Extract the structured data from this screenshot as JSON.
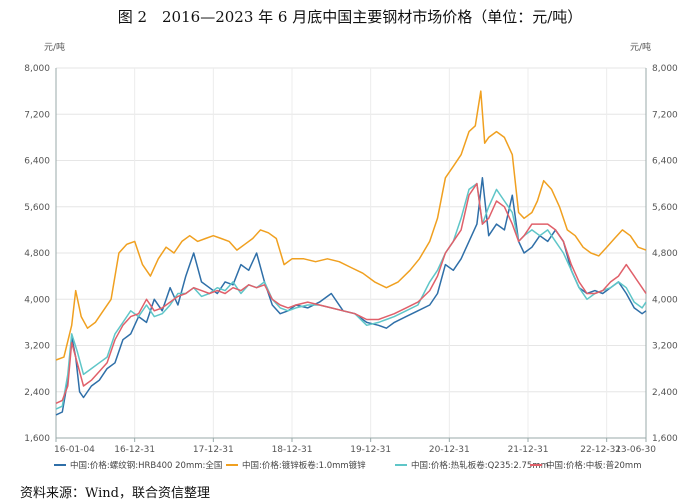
{
  "figure_title": "图 2　2016—2023 年 6 月底中国主要钢材市场价格（单位：元/吨）",
  "source_note": "资料来源：Wind，联合资信整理",
  "colors": {
    "s1": "#2f6fa8",
    "s2": "#f0a020",
    "s3": "#5fc6c8",
    "s4": "#e0606a"
  },
  "chart_data": {
    "type": "line",
    "title": "图 2　2016—2023 年 6 月底中国主要钢材市场价格（单位：元/吨）",
    "y_unit_left": "元/吨",
    "y_unit_right": "元/吨",
    "ylim": [
      1600,
      8000
    ],
    "y_ticks": [
      "1,600",
      "2,400",
      "3,200",
      "4,000",
      "4,800",
      "5,600",
      "6,400",
      "7,200",
      "8,000"
    ],
    "y_tick_values": [
      1600,
      2400,
      3200,
      4000,
      4800,
      5600,
      6400,
      7200,
      8000
    ],
    "x_ticks": [
      "16-01-04",
      "16-12-31",
      "17-12-31",
      "18-12-31",
      "19-12-31",
      "20-12-31",
      "21-12-31",
      "22-12-31",
      "23-06-30"
    ],
    "x_tick_values": [
      2016.0,
      2017.0,
      2018.0,
      2019.0,
      2020.0,
      2021.0,
      2022.0,
      2023.0,
      2023.5
    ],
    "xlim": [
      2016.0,
      2023.5
    ],
    "grid": true,
    "legend": "bottom",
    "series": [
      {
        "name": "中国:价格:螺纹钢:HRB400 20mm:全国",
        "x": [
          2016.0,
          2016.08,
          2016.15,
          2016.2,
          2016.25,
          2016.3,
          2016.35,
          2016.45,
          2016.55,
          2016.65,
          2016.75,
          2016.85,
          2016.95,
          2017.05,
          2017.15,
          2017.25,
          2017.35,
          2017.45,
          2017.55,
          2017.65,
          2017.75,
          2017.85,
          2017.95,
          2018.05,
          2018.15,
          2018.25,
          2018.35,
          2018.45,
          2018.55,
          2018.65,
          2018.75,
          2018.85,
          2018.95,
          2019.05,
          2019.2,
          2019.35,
          2019.5,
          2019.65,
          2019.8,
          2019.95,
          2020.1,
          2020.2,
          2020.3,
          2020.45,
          2020.6,
          2020.75,
          2020.85,
          2020.95,
          2021.05,
          2021.15,
          2021.25,
          2021.35,
          2021.42,
          2021.5,
          2021.6,
          2021.7,
          2021.8,
          2021.88,
          2021.95,
          2022.05,
          2022.15,
          2022.25,
          2022.35,
          2022.45,
          2022.55,
          2022.65,
          2022.75,
          2022.85,
          2022.95,
          2023.05,
          2023.15,
          2023.25,
          2023.35,
          2023.45,
          2023.5
        ],
        "y": [
          2000,
          2050,
          2600,
          3350,
          3000,
          2400,
          2300,
          2500,
          2600,
          2800,
          2900,
          3300,
          3400,
          3700,
          3600,
          4000,
          3800,
          4200,
          3900,
          4400,
          4800,
          4300,
          4200,
          4100,
          4300,
          4250,
          4600,
          4500,
          4800,
          4300,
          3900,
          3750,
          3800,
          3900,
          3850,
          3950,
          4100,
          3800,
          3750,
          3600,
          3550,
          3500,
          3600,
          3700,
          3800,
          3900,
          4100,
          4600,
          4500,
          4700,
          5000,
          5300,
          6100,
          5100,
          5300,
          5200,
          5800,
          5000,
          4800,
          4900,
          5100,
          5000,
          5200,
          5000,
          4500,
          4200,
          4100,
          4150,
          4100,
          4200,
          4300,
          4100,
          3850,
          3750,
          3800
        ]
      },
      {
        "name": "中国:价格:镀锌板卷:1.0mm镀锌",
        "x": [
          2016.0,
          2016.1,
          2016.2,
          2016.25,
          2016.32,
          2016.4,
          2016.5,
          2016.6,
          2016.7,
          2016.8,
          2016.9,
          2017.0,
          2017.1,
          2017.2,
          2017.3,
          2017.4,
          2017.5,
          2017.6,
          2017.7,
          2017.8,
          2017.9,
          2018.0,
          2018.1,
          2018.2,
          2018.3,
          2018.4,
          2018.5,
          2018.6,
          2018.7,
          2018.8,
          2018.9,
          2019.0,
          2019.15,
          2019.3,
          2019.45,
          2019.6,
          2019.75,
          2019.9,
          2020.05,
          2020.2,
          2020.35,
          2020.5,
          2020.62,
          2020.75,
          2020.85,
          2020.95,
          2021.05,
          2021.15,
          2021.25,
          2021.33,
          2021.4,
          2021.45,
          2021.5,
          2021.6,
          2021.7,
          2021.8,
          2021.88,
          2021.95,
          2022.05,
          2022.12,
          2022.2,
          2022.3,
          2022.4,
          2022.5,
          2022.6,
          2022.7,
          2022.8,
          2022.9,
          2023.0,
          2023.1,
          2023.2,
          2023.3,
          2023.4,
          2023.5
        ],
        "y": [
          2950,
          3000,
          3550,
          4150,
          3700,
          3500,
          3600,
          3800,
          4000,
          4800,
          4950,
          5000,
          4600,
          4400,
          4700,
          4900,
          4800,
          5000,
          5100,
          5000,
          5050,
          5100,
          5050,
          5000,
          4850,
          4950,
          5050,
          5200,
          5150,
          5050,
          4600,
          4700,
          4700,
          4650,
          4700,
          4650,
          4550,
          4450,
          4300,
          4200,
          4300,
          4500,
          4700,
          5000,
          5400,
          6100,
          6300,
          6500,
          6900,
          7000,
          7600,
          6700,
          6800,
          6900,
          6800,
          6500,
          5500,
          5400,
          5500,
          5700,
          6050,
          5900,
          5600,
          5200,
          5100,
          4900,
          4800,
          4750,
          4900,
          5050,
          5200,
          5100,
          4900,
          4850
        ]
      },
      {
        "name": "中国:价格:热轧板卷:Q235:2.75mm",
        "x": [
          2016.0,
          2016.08,
          2016.15,
          2016.2,
          2016.27,
          2016.35,
          2016.45,
          2016.55,
          2016.65,
          2016.75,
          2016.85,
          2016.95,
          2017.05,
          2017.15,
          2017.25,
          2017.35,
          2017.45,
          2017.55,
          2017.65,
          2017.75,
          2017.85,
          2017.95,
          2018.05,
          2018.15,
          2018.25,
          2018.35,
          2018.45,
          2018.55,
          2018.65,
          2018.75,
          2018.85,
          2018.95,
          2019.05,
          2019.2,
          2019.35,
          2019.5,
          2019.65,
          2019.8,
          2019.95,
          2020.1,
          2020.2,
          2020.3,
          2020.45,
          2020.6,
          2020.75,
          2020.85,
          2020.95,
          2021.05,
          2021.15,
          2021.25,
          2021.35,
          2021.42,
          2021.5,
          2021.6,
          2021.7,
          2021.8,
          2021.88,
          2021.95,
          2022.05,
          2022.15,
          2022.25,
          2022.35,
          2022.45,
          2022.55,
          2022.65,
          2022.75,
          2022.85,
          2022.95,
          2023.05,
          2023.15,
          2023.25,
          2023.35,
          2023.45,
          2023.5
        ],
        "y": [
          2100,
          2150,
          2700,
          3400,
          3100,
          2700,
          2800,
          2900,
          3000,
          3400,
          3600,
          3800,
          3700,
          3900,
          3700,
          3750,
          3900,
          4100,
          4100,
          4200,
          4050,
          4100,
          4200,
          4150,
          4300,
          4100,
          4250,
          4200,
          4300,
          4000,
          3850,
          3800,
          3850,
          3900,
          3900,
          3850,
          3800,
          3750,
          3550,
          3600,
          3650,
          3700,
          3800,
          3900,
          4300,
          4500,
          4800,
          5000,
          5400,
          5900,
          6000,
          5300,
          5600,
          5900,
          5700,
          5500,
          5000,
          5100,
          5200,
          5100,
          5200,
          5000,
          4800,
          4500,
          4200,
          4000,
          4100,
          4150,
          4200,
          4300,
          4200,
          3950,
          3850,
          3950
        ]
      },
      {
        "name": "中国:价格:中板:普20mm",
        "x": [
          2016.0,
          2016.08,
          2016.15,
          2016.2,
          2016.27,
          2016.35,
          2016.45,
          2016.55,
          2016.65,
          2016.75,
          2016.85,
          2016.95,
          2017.05,
          2017.15,
          2017.25,
          2017.35,
          2017.45,
          2017.55,
          2017.65,
          2017.75,
          2017.85,
          2017.95,
          2018.05,
          2018.15,
          2018.25,
          2018.35,
          2018.45,
          2018.55,
          2018.65,
          2018.75,
          2018.85,
          2018.95,
          2019.05,
          2019.2,
          2019.35,
          2019.5,
          2019.65,
          2019.8,
          2019.95,
          2020.1,
          2020.2,
          2020.3,
          2020.45,
          2020.6,
          2020.75,
          2020.85,
          2020.95,
          2021.05,
          2021.15,
          2021.25,
          2021.35,
          2021.42,
          2021.5,
          2021.6,
          2021.7,
          2021.8,
          2021.88,
          2021.95,
          2022.05,
          2022.15,
          2022.25,
          2022.35,
          2022.45,
          2022.55,
          2022.65,
          2022.75,
          2022.85,
          2022.95,
          2023.05,
          2023.15,
          2023.25,
          2023.35,
          2023.45,
          2023.5
        ],
        "y": [
          2200,
          2250,
          2500,
          3250,
          2900,
          2500,
          2600,
          2750,
          2900,
          3300,
          3550,
          3700,
          3750,
          4000,
          3800,
          3850,
          3950,
          4050,
          4100,
          4200,
          4150,
          4100,
          4150,
          4100,
          4200,
          4150,
          4250,
          4200,
          4250,
          4000,
          3900,
          3850,
          3900,
          3950,
          3900,
          3850,
          3800,
          3750,
          3650,
          3650,
          3700,
          3750,
          3850,
          3950,
          4150,
          4400,
          4800,
          5000,
          5200,
          5800,
          6000,
          5300,
          5400,
          5700,
          5600,
          5300,
          5000,
          5100,
          5300,
          5300,
          5300,
          5200,
          5000,
          4600,
          4300,
          4100,
          4100,
          4150,
          4300,
          4400,
          4600,
          4400,
          4200,
          4100
        ]
      }
    ]
  }
}
